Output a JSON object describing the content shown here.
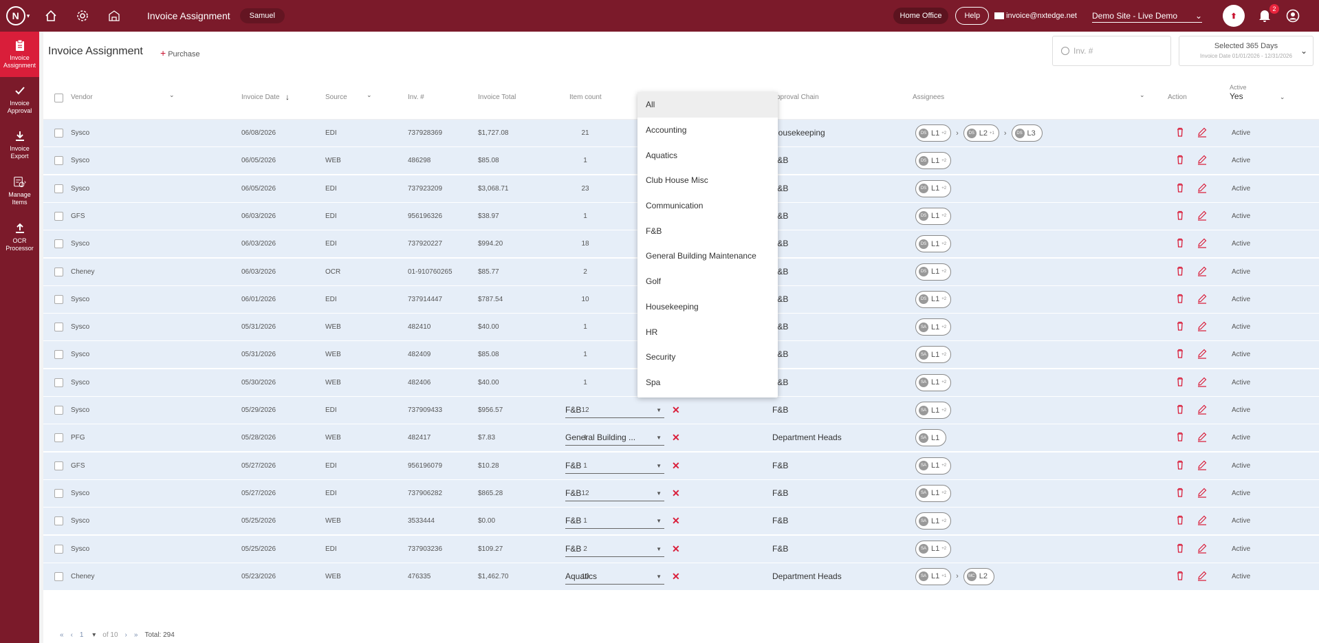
{
  "topbar": {
    "title": "Invoice Assignment",
    "user": "Samuel",
    "home_office": "Home Office",
    "help": "Help",
    "email": "invoice@nxtedge.net",
    "site": "Demo Site - Live Demo",
    "notification_count": "2"
  },
  "sidebar": {
    "items": [
      {
        "label": "Invoice Assignment"
      },
      {
        "label": "Invoice Approval"
      },
      {
        "label": "Invoice Export"
      },
      {
        "label": "Manage Items"
      },
      {
        "label": "OCR Processor"
      }
    ]
  },
  "page": {
    "title": "Invoice Assignment",
    "purchase_label": "Purchase",
    "search_placeholder": "Inv. #",
    "date_range_label": "Selected 365 Days",
    "date_range_sub": "Invoice Date 01/01/2026 - 12/31/2026"
  },
  "columns": {
    "vendor": "Vendor",
    "invoice_date": "Invoice Date",
    "source": "Source",
    "inv_no": "Inv. #",
    "invoice_total": "Invoice Total",
    "item_count": "Item count",
    "approval_chain": "pproval Chain",
    "assignees": "Assignees",
    "action": "Action",
    "active_label": "Active",
    "active_value": "Yes"
  },
  "dropdown": {
    "options": [
      "All",
      "Accounting",
      "Aquatics",
      "Club House Misc",
      "Communication",
      "F&B",
      "General Building Maintenance",
      "Golf",
      "Housekeeping",
      "HR",
      "Security",
      "Spa"
    ]
  },
  "rows": [
    {
      "vendor": "Sysco",
      "date": "06/08/2026",
      "source": "EDI",
      "inv": "737928369",
      "total": "$1,727.08",
      "count": "21",
      "dept": "",
      "chain": "Housekeeping",
      "assignees": [
        {
          "av": "DS",
          "lvl": "L1",
          "sub": "+2"
        },
        {
          "av": "DS",
          "lvl": "L2",
          "sub": "+1"
        },
        {
          "av": "DS",
          "lvl": "L3",
          "sub": ""
        }
      ],
      "status": "Active"
    },
    {
      "vendor": "Sysco",
      "date": "06/05/2026",
      "source": "WEB",
      "inv": "486298",
      "total": "$85.08",
      "count": "1",
      "dept": "",
      "chain": "F&B",
      "assignees": [
        {
          "av": "DS",
          "lvl": "L1",
          "sub": "+2"
        }
      ],
      "status": "Active"
    },
    {
      "vendor": "Sysco",
      "date": "06/05/2026",
      "source": "EDI",
      "inv": "737923209",
      "total": "$3,068.71",
      "count": "23",
      "dept": "",
      "chain": "F&B",
      "assignees": [
        {
          "av": "DS",
          "lvl": "L1",
          "sub": "+2"
        }
      ],
      "status": "Active"
    },
    {
      "vendor": "GFS",
      "date": "06/03/2026",
      "source": "EDI",
      "inv": "956196326",
      "total": "$38.97",
      "count": "1",
      "dept": "",
      "chain": "F&B",
      "assignees": [
        {
          "av": "DS",
          "lvl": "L1",
          "sub": "+2"
        }
      ],
      "status": "Active"
    },
    {
      "vendor": "Sysco",
      "date": "06/03/2026",
      "source": "EDI",
      "inv": "737920227",
      "total": "$994.20",
      "count": "18",
      "dept": "",
      "chain": "F&B",
      "assignees": [
        {
          "av": "DS",
          "lvl": "L1",
          "sub": "+2"
        }
      ],
      "status": "Active"
    },
    {
      "vendor": "Cheney",
      "date": "06/03/2026",
      "source": "OCR",
      "inv": "01-910760265",
      "total": "$85.77",
      "count": "2",
      "dept": "",
      "chain": "F&B",
      "assignees": [
        {
          "av": "DS",
          "lvl": "L1",
          "sub": "+2"
        }
      ],
      "status": "Active"
    },
    {
      "vendor": "Sysco",
      "date": "06/01/2026",
      "source": "EDI",
      "inv": "737914447",
      "total": "$787.54",
      "count": "10",
      "dept": "",
      "chain": "F&B",
      "assignees": [
        {
          "av": "DS",
          "lvl": "L1",
          "sub": "+2"
        }
      ],
      "status": "Active"
    },
    {
      "vendor": "Sysco",
      "date": "05/31/2026",
      "source": "WEB",
      "inv": "482410",
      "total": "$40.00",
      "count": "1",
      "dept": "",
      "chain": "F&B",
      "assignees": [
        {
          "av": "SA",
          "lvl": "L1",
          "sub": "+2"
        }
      ],
      "status": "Active"
    },
    {
      "vendor": "Sysco",
      "date": "05/31/2026",
      "source": "WEB",
      "inv": "482409",
      "total": "$85.08",
      "count": "1",
      "dept": "",
      "chain": "F&B",
      "assignees": [
        {
          "av": "SA",
          "lvl": "L1",
          "sub": "+2"
        }
      ],
      "status": "Active"
    },
    {
      "vendor": "Sysco",
      "date": "05/30/2026",
      "source": "WEB",
      "inv": "482406",
      "total": "$40.00",
      "count": "1",
      "dept": "",
      "chain": "F&B",
      "assignees": [
        {
          "av": "SA",
          "lvl": "L1",
          "sub": "+2"
        }
      ],
      "status": "Active"
    },
    {
      "vendor": "Sysco",
      "date": "05/29/2026",
      "source": "EDI",
      "inv": "737909433",
      "total": "$956.57",
      "count": "12",
      "dept": "F&B",
      "chain": "F&B",
      "assignees": [
        {
          "av": "SA",
          "lvl": "L1",
          "sub": "+2"
        }
      ],
      "status": "Active"
    },
    {
      "vendor": "PFG",
      "date": "05/28/2026",
      "source": "WEB",
      "inv": "482417",
      "total": "$7.83",
      "count": "1",
      "dept": "General Building ...",
      "chain": "Department Heads",
      "assignees": [
        {
          "av": "SA",
          "lvl": "L1",
          "sub": ""
        }
      ],
      "status": "Active"
    },
    {
      "vendor": "GFS",
      "date": "05/27/2026",
      "source": "EDI",
      "inv": "956196079",
      "total": "$10.28",
      "count": "1",
      "dept": "F&B",
      "chain": "F&B",
      "assignees": [
        {
          "av": "SA",
          "lvl": "L1",
          "sub": "+2"
        }
      ],
      "status": "Active"
    },
    {
      "vendor": "Sysco",
      "date": "05/27/2026",
      "source": "EDI",
      "inv": "737906282",
      "total": "$865.28",
      "count": "12",
      "dept": "F&B",
      "chain": "F&B",
      "assignees": [
        {
          "av": "SA",
          "lvl": "L1",
          "sub": "+2"
        }
      ],
      "status": "Active"
    },
    {
      "vendor": "Sysco",
      "date": "05/25/2026",
      "source": "WEB",
      "inv": "3533444",
      "total": "$0.00",
      "count": "1",
      "dept": "F&B",
      "chain": "F&B",
      "assignees": [
        {
          "av": "SA",
          "lvl": "L1",
          "sub": "+2"
        }
      ],
      "status": "Active"
    },
    {
      "vendor": "Sysco",
      "date": "05/25/2026",
      "source": "EDI",
      "inv": "737903236",
      "total": "$109.27",
      "count": "2",
      "dept": "F&B",
      "chain": "F&B",
      "assignees": [
        {
          "av": "SA",
          "lvl": "L1",
          "sub": "+2"
        }
      ],
      "status": "Active"
    },
    {
      "vendor": "Cheney",
      "date": "05/23/2026",
      "source": "WEB",
      "inv": "476335",
      "total": "$1,462.70",
      "count": "10",
      "dept": "Aquatics",
      "chain": "Department Heads",
      "assignees": [
        {
          "av": "SA",
          "lvl": "L1",
          "sub": "+1"
        },
        {
          "av": "MC",
          "lvl": "L2",
          "sub": ""
        }
      ],
      "status": "Active"
    }
  ],
  "pagination": {
    "page": "1",
    "of": "of 10",
    "total": "Total: 294"
  },
  "colors": {
    "brand": "#7b1a2a",
    "accent": "#d91e3a",
    "row_bg": "#e6eef8"
  }
}
